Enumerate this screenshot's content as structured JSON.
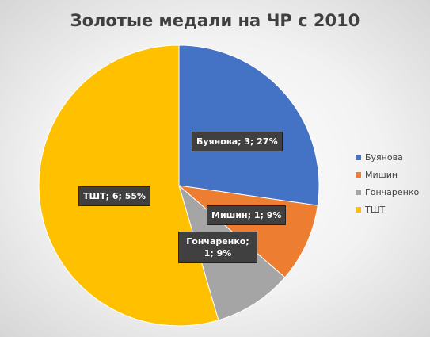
{
  "chart_data": {
    "type": "pie",
    "title": "Золотые медали на ЧР с 2010",
    "categories": [
      "Буянова",
      "Мишин",
      "Гончаренко",
      "ТШТ"
    ],
    "values": [
      3,
      1,
      1,
      6
    ],
    "percent_labels": [
      "27%",
      "9%",
      "9%",
      "55%"
    ],
    "data_labels": [
      "Буянова; 3; 27%",
      "Мишин; 1; 9%",
      "Гончаренко; 1; 9%",
      "ТШТ; 6; 55%"
    ],
    "colors": [
      "#4472c4",
      "#ed7d31",
      "#a5a5a5",
      "#ffc000"
    ],
    "legend_position": "right"
  }
}
